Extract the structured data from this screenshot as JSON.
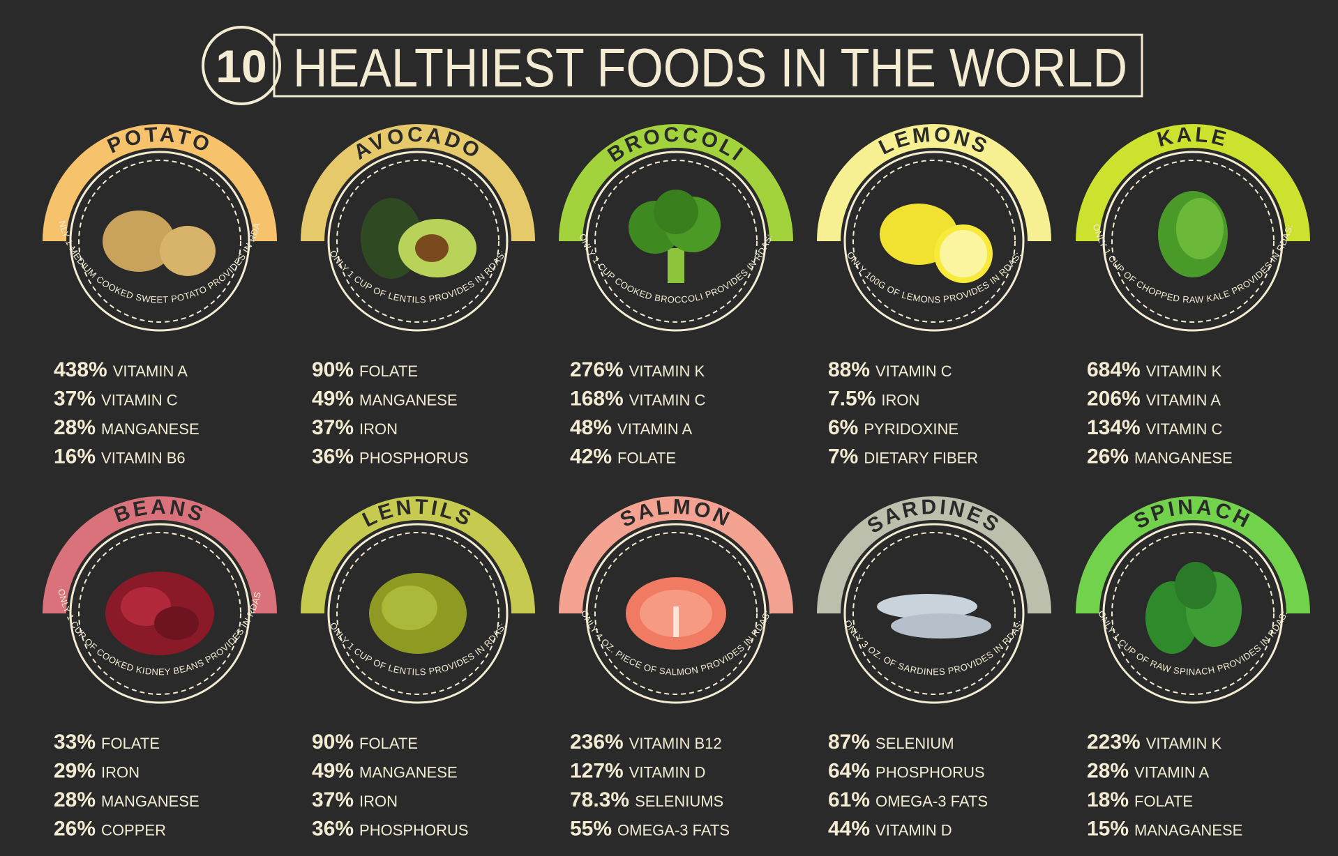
{
  "header": {
    "number": "10",
    "title": "HEALTHIEST FOODS IN THE WORLD"
  },
  "foods": [
    {
      "name": "POTATO",
      "color": "#f6c36c",
      "caption": "ONLY 1 MEDIUM COOKED SWEET POTATO PROVIDES IN RDAS:",
      "nutrients": [
        {
          "percent": "438%",
          "name": "VITAMIN A"
        },
        {
          "percent": "37%",
          "name": "VITAMIN C"
        },
        {
          "percent": "28%",
          "name": "MANGANESE"
        },
        {
          "percent": "16%",
          "name": "VITAMIN B6"
        }
      ]
    },
    {
      "name": "AVOCADO",
      "color": "#e6c96b",
      "caption": "ONLY 1 CUP OF LENTILS PROVIDES IN RDAS:",
      "nutrients": [
        {
          "percent": "90%",
          "name": "FOLATE"
        },
        {
          "percent": "49%",
          "name": "MANGANESE"
        },
        {
          "percent": "37%",
          "name": "IRON"
        },
        {
          "percent": "36%",
          "name": "PHOSPHORUS"
        }
      ]
    },
    {
      "name": "BROCCOLI",
      "color": "#a2d23c",
      "caption": "ONLY 1 CUP COOKED BROCCOLI PROVIDES IN RDAS:",
      "nutrients": [
        {
          "percent": "276%",
          "name": "VITAMIN K"
        },
        {
          "percent": "168%",
          "name": "VITAMIN C"
        },
        {
          "percent": "48%",
          "name": "VITAMIN A"
        },
        {
          "percent": "42%",
          "name": "FOLATE"
        }
      ]
    },
    {
      "name": "LEMONS",
      "color": "#f6f093",
      "caption": "ONLY 100G OF LEMONS PROVIDES IN RDAS:",
      "nutrients": [
        {
          "percent": "88%",
          "name": "VITAMIN C"
        },
        {
          "percent": "7.5%",
          "name": "IRON"
        },
        {
          "percent": "6%",
          "name": "PYRIDOXINE"
        },
        {
          "percent": "7%",
          "name": "DIETARY FIBER"
        }
      ]
    },
    {
      "name": "KALE",
      "color": "#cce22e",
      "caption": "ONLY 1 CUP OF CHOPPED RAW KALE PROVIDES IN RDAS:",
      "nutrients": [
        {
          "percent": "684%",
          "name": "VITAMIN K"
        },
        {
          "percent": "206%",
          "name": "VITAMIN A"
        },
        {
          "percent": "134%",
          "name": "VITAMIN C"
        },
        {
          "percent": "26%",
          "name": "MANGANESE"
        }
      ]
    },
    {
      "name": "BEANS",
      "color": "#da727b",
      "caption": "ONLY 1 CUP OF COOKED KIDNEY BEANS PROVIDES IN RDAS:",
      "nutrients": [
        {
          "percent": "33%",
          "name": "FOLATE"
        },
        {
          "percent": "29%",
          "name": "IRON"
        },
        {
          "percent": "28%",
          "name": "MANGANESE"
        },
        {
          "percent": "26%",
          "name": "COPPER"
        }
      ]
    },
    {
      "name": "LENTILS",
      "color": "#c6cb50",
      "caption": "ONLY 1 CUP OF LENTILS PROVIDES IN RDAS:",
      "nutrients": [
        {
          "percent": "90%",
          "name": "FOLATE"
        },
        {
          "percent": "49%",
          "name": "MANGANESE"
        },
        {
          "percent": "37%",
          "name": "IRON"
        },
        {
          "percent": "36%",
          "name": "PHOSPHORUS"
        }
      ]
    },
    {
      "name": "SALMON",
      "color": "#f4a392",
      "caption": "ONLY 4 OZ. PIECE OF SALMON PROVIDES IN RDAS:",
      "nutrients": [
        {
          "percent": "236%",
          "name": "VITAMIN B12"
        },
        {
          "percent": "127%",
          "name": "VITAMIN D"
        },
        {
          "percent": "78.3%",
          "name": "SELENIUMS"
        },
        {
          "percent": "55%",
          "name": "OMEGA-3 FATS"
        }
      ]
    },
    {
      "name": "SARDINES",
      "color": "#bbbfab",
      "caption": "ONLY 3 OZ. OF SARDINES PROVIDES IN RDAS:",
      "nutrients": [
        {
          "percent": "87%",
          "name": "SELENIUM"
        },
        {
          "percent": "64%",
          "name": "PHOSPHORUS"
        },
        {
          "percent": "61%",
          "name": "OMEGA-3 FATS"
        },
        {
          "percent": "44%",
          "name": "VITAMIN D"
        }
      ]
    },
    {
      "name": "SPINACH",
      "color": "#72d24c",
      "caption": "ONLY 1 CUP OF RAW SPINACH PROVIDES IN RDAS:",
      "nutrients": [
        {
          "percent": "223%",
          "name": "VITAMIN K"
        },
        {
          "percent": "28%",
          "name": "VITAMIN A"
        },
        {
          "percent": "18%",
          "name": "FOLATE"
        },
        {
          "percent": "15%",
          "name": "MANAGANESE"
        }
      ]
    }
  ]
}
